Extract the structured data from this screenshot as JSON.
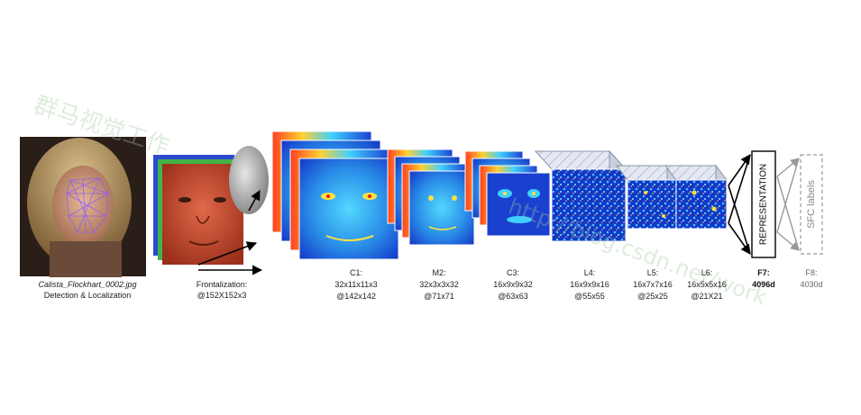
{
  "input": {
    "filename": "Calista_Flockhart_0002.jpg",
    "caption": "Detection & Localization"
  },
  "frontal": {
    "title": "Frontalization:",
    "size": "@152X152x3"
  },
  "layers": [
    {
      "name": "C1:",
      "kernel": "32x11x11x3",
      "output": "@142x142"
    },
    {
      "name": "M2:",
      "kernel": "32x3x3x32",
      "output": "@71x71"
    },
    {
      "name": "C3:",
      "kernel": "16x9x9x32",
      "output": "@63x63"
    },
    {
      "name": "L4:",
      "kernel": "16x9x9x16",
      "output": "@55x55"
    },
    {
      "name": "L5:",
      "kernel": "16x7x7x16",
      "output": "@25x25"
    },
    {
      "name": "L6:",
      "kernel": "16x5x5x16",
      "output": "@21X21"
    }
  ],
  "f7": {
    "name": "F7:",
    "dim": "4096d",
    "box_label": "REPRESENTATION"
  },
  "f8": {
    "name": "F8:",
    "dim": "4030d",
    "box_label": "SFC labels"
  },
  "watermark": {
    "text1": "群马视觉工作",
    "text2": "http://blog.csdn.net/work"
  },
  "colors": {
    "face_orange": "#c9492c",
    "fmap_blue": "#1a3fcf",
    "fmap_cyan": "#3ec8e6",
    "arrow": "#000000",
    "dashed": "#999999"
  }
}
